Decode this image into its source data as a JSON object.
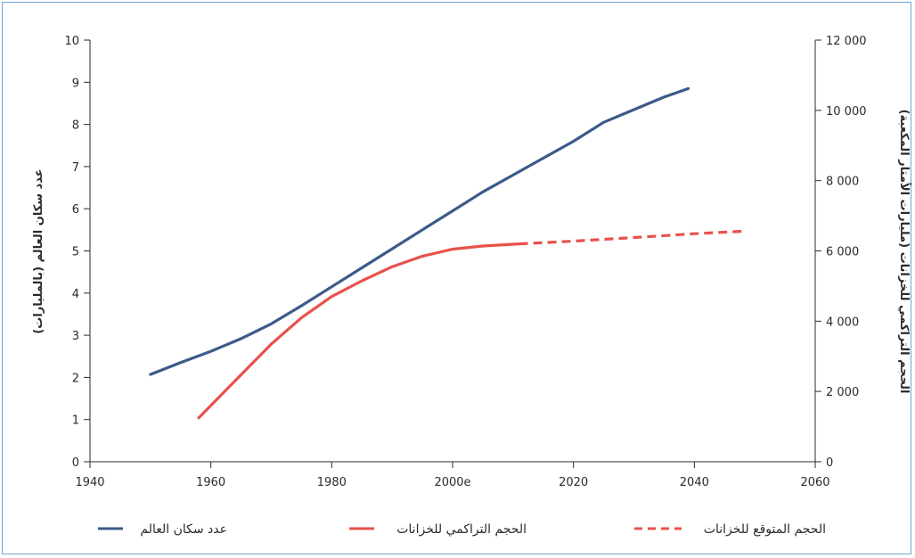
{
  "chart_data": {
    "type": "line",
    "title": "",
    "x_ticks": [
      "1940",
      "1960",
      "1980",
      "2000e",
      "2020",
      "2040",
      "2060"
    ],
    "xlim": [
      1940,
      2060
    ],
    "left_axis": {
      "label": "عدد سكان العالم (بالمليارات)",
      "ylim": [
        0,
        10
      ],
      "ticks": [
        "0",
        "1",
        "2",
        "3",
        "4",
        "5",
        "6",
        "7",
        "8",
        "9",
        "10"
      ]
    },
    "right_axis": {
      "label": "الحجم التراكمي للخزانات (مليارات الأمتار المكعبة)",
      "ylim": [
        0,
        12000
      ],
      "ticks": [
        "0",
        "2 000",
        "4 000",
        "6 000",
        "8 000",
        "10 000",
        "12 000"
      ]
    },
    "series": [
      {
        "name": "عدد سكان العالم",
        "axis": "left",
        "color": "#3c5a8a",
        "style": "solid",
        "points": [
          [
            1950,
            2.07
          ],
          [
            1955,
            2.35
          ],
          [
            1960,
            2.62
          ],
          [
            1965,
            2.92
          ],
          [
            1970,
            3.27
          ],
          [
            1975,
            3.7
          ],
          [
            1980,
            4.15
          ],
          [
            1985,
            4.6
          ],
          [
            1990,
            5.05
          ],
          [
            1995,
            5.5
          ],
          [
            2000,
            5.95
          ],
          [
            2005,
            6.4
          ],
          [
            2010,
            6.8
          ],
          [
            2015,
            7.2
          ],
          [
            2020,
            7.6
          ],
          [
            2025,
            8.05
          ],
          [
            2030,
            8.35
          ],
          [
            2035,
            8.65
          ],
          [
            2039,
            8.85
          ]
        ]
      },
      {
        "name": "الحجم التراكمي للخزانات",
        "axis": "right",
        "color": "#e8524a",
        "style": "solid",
        "points": [
          [
            1958,
            1250
          ],
          [
            1962,
            1950
          ],
          [
            1966,
            2650
          ],
          [
            1970,
            3350
          ],
          [
            1975,
            4100
          ],
          [
            1980,
            4700
          ],
          [
            1985,
            5150
          ],
          [
            1990,
            5550
          ],
          [
            1995,
            5850
          ],
          [
            2000,
            6050
          ],
          [
            2005,
            6140
          ],
          [
            2011,
            6200
          ]
        ]
      },
      {
        "name": "الحجم المتوقع للخزانات",
        "axis": "right",
        "color": "#e8524a",
        "style": "dashed",
        "points": [
          [
            2011,
            6200
          ],
          [
            2020,
            6280
          ],
          [
            2030,
            6380
          ],
          [
            2040,
            6490
          ],
          [
            2048,
            6560
          ]
        ]
      }
    ],
    "legend": [
      "عدد سكان العالم",
      "الحجم التراكمي للخزانات",
      "الحجم المتوقع للخزانات"
    ],
    "legend_position": "bottom",
    "grid": false
  }
}
